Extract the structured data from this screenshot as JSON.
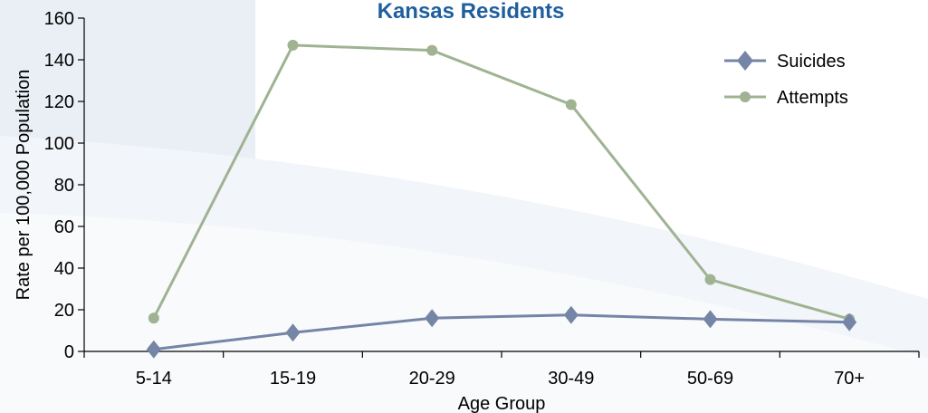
{
  "chart_data": {
    "type": "line",
    "title": "Kansas Residents",
    "xlabel": "Age Group",
    "ylabel": "Rate per 100,000 Population",
    "categories": [
      "5-14",
      "15-19",
      "20-29",
      "30-49",
      "50-69",
      "70+"
    ],
    "ylim": [
      0,
      160
    ],
    "yticks": [
      "0",
      "20",
      "40",
      "60",
      "80",
      "100",
      "120",
      "140",
      "160"
    ],
    "grid": false,
    "legend_position": "top-right",
    "series": [
      {
        "name": "Suicides",
        "values": [
          1,
          9,
          16,
          17.5,
          15.5,
          14
        ],
        "color": "#7585a6",
        "marker": "diamond"
      },
      {
        "name": "Attempts",
        "values": [
          16,
          147,
          144.5,
          118.5,
          34.5,
          15.5
        ],
        "color": "#9fb393",
        "marker": "circle"
      }
    ]
  }
}
